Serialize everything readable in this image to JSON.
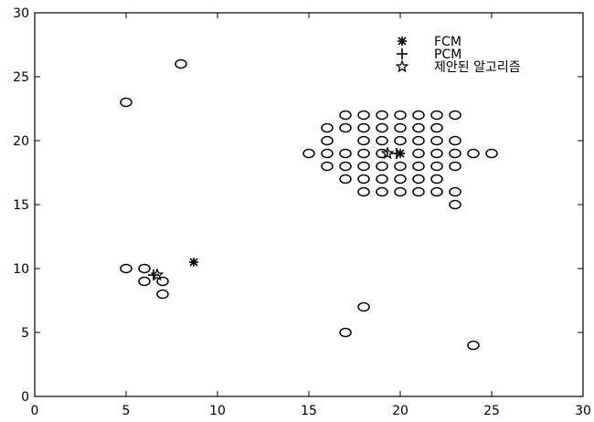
{
  "chart_data": {
    "type": "scatter",
    "title": "",
    "xlabel": "",
    "ylabel": "",
    "xlim": [
      0,
      30
    ],
    "ylim": [
      0,
      30
    ],
    "xticks": [
      0,
      5,
      10,
      15,
      20,
      25,
      30
    ],
    "yticks": [
      0,
      5,
      10,
      15,
      20,
      25,
      30
    ],
    "xtick_labels": [
      "0",
      "5",
      "10",
      "15",
      "20",
      "25",
      "30"
    ],
    "ytick_labels": [
      "0",
      "5",
      "10",
      "15",
      "20",
      "25",
      "30"
    ],
    "grid": false,
    "legend_position": "top-right",
    "series": [
      {
        "name": "",
        "marker": "diamond",
        "points": [
          [
            5,
            23
          ],
          [
            8,
            26
          ],
          [
            5,
            10
          ],
          [
            6,
            10
          ],
          [
            6,
            9
          ],
          [
            7,
            9
          ],
          [
            7,
            8
          ],
          [
            17,
            5
          ],
          [
            18,
            7
          ],
          [
            24,
            4
          ],
          [
            15,
            19
          ],
          [
            25,
            19
          ],
          [
            24,
            19
          ],
          [
            17,
            22
          ],
          [
            18,
            22
          ],
          [
            19,
            22
          ],
          [
            20,
            22
          ],
          [
            21,
            22
          ],
          [
            22,
            22
          ],
          [
            23,
            22
          ],
          [
            16,
            21
          ],
          [
            17,
            21
          ],
          [
            18,
            21
          ],
          [
            19,
            21
          ],
          [
            20,
            21
          ],
          [
            21,
            21
          ],
          [
            22,
            21
          ],
          [
            16,
            20
          ],
          [
            18,
            20
          ],
          [
            19,
            20
          ],
          [
            20,
            20
          ],
          [
            21,
            20
          ],
          [
            22,
            20
          ],
          [
            23,
            20
          ],
          [
            16,
            19
          ],
          [
            17,
            19
          ],
          [
            18,
            19
          ],
          [
            19,
            19
          ],
          [
            21,
            19
          ],
          [
            22,
            19
          ],
          [
            23,
            19
          ],
          [
            16,
            18
          ],
          [
            17,
            18
          ],
          [
            18,
            18
          ],
          [
            19,
            18
          ],
          [
            20,
            18
          ],
          [
            21,
            18
          ],
          [
            22,
            18
          ],
          [
            23,
            18
          ],
          [
            17,
            17
          ],
          [
            18,
            17
          ],
          [
            19,
            17
          ],
          [
            20,
            17
          ],
          [
            21,
            17
          ],
          [
            22,
            17
          ],
          [
            18,
            16
          ],
          [
            19,
            16
          ],
          [
            20,
            16
          ],
          [
            21,
            16
          ],
          [
            22,
            16
          ],
          [
            23,
            16
          ],
          [
            23,
            15
          ]
        ]
      },
      {
        "name": "FCM",
        "marker": "asterisk",
        "points": [
          [
            8.7,
            10.5
          ],
          [
            20,
            19
          ]
        ]
      },
      {
        "name": "PCM",
        "marker": "plus",
        "points": [
          [
            6.5,
            9.5
          ],
          [
            19.8,
            19
          ]
        ]
      },
      {
        "name": "제안된 알고리즘",
        "marker": "star",
        "points": [
          [
            6.7,
            9.5
          ],
          [
            19.3,
            19
          ]
        ]
      }
    ]
  }
}
